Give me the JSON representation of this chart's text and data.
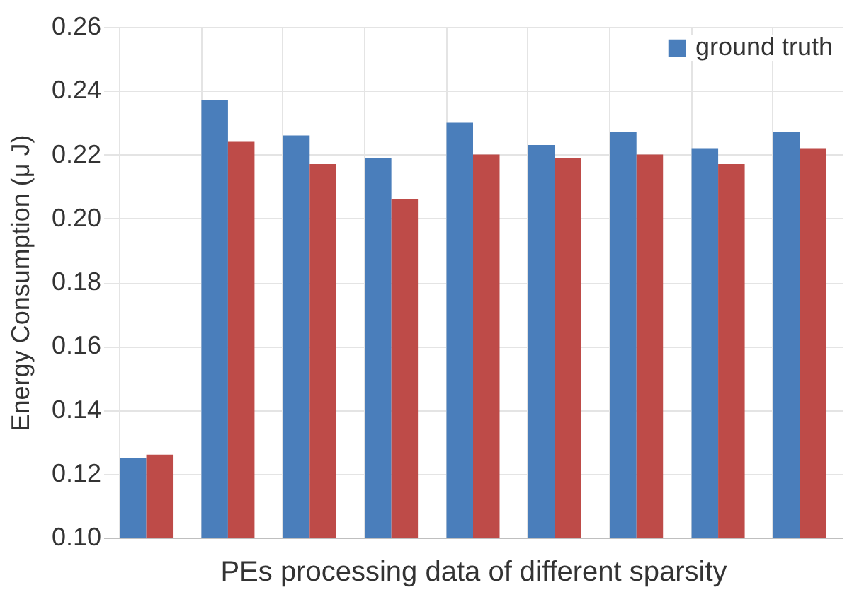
{
  "chart_data": {
    "type": "bar",
    "xlabel": "PEs processing data of different sparsity",
    "ylabel": "Energy Consumption (μ J)",
    "categories": [
      null,
      null,
      null,
      null,
      null,
      null,
      null,
      null,
      null
    ],
    "series": [
      {
        "name": "ground truth",
        "color": "#4a7ebb",
        "values": [
          0.125,
          0.237,
          0.226,
          0.219,
          0.23,
          0.223,
          0.227,
          0.222,
          0.227
        ]
      },
      {
        "color": "#be4b48",
        "values": [
          0.126,
          0.224,
          0.217,
          0.206,
          0.22,
          0.219,
          0.22,
          0.217,
          0.222
        ]
      }
    ],
    "ylim": [
      0.1,
      0.26
    ],
    "yticks": [
      {
        "value": 0.1,
        "label": "0.10"
      },
      0.12,
      0.14,
      0.16,
      0.18,
      {
        "value": 0.2,
        "label": "0.20"
      },
      0.22,
      0.24,
      0.26
    ],
    "grid": true,
    "legend": "top right"
  }
}
